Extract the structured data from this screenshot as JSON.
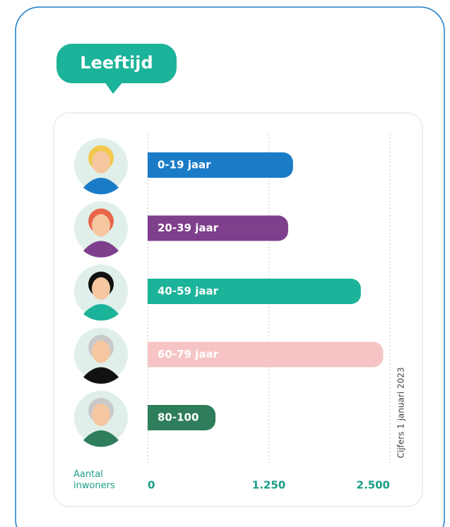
{
  "chart_data": {
    "type": "bar",
    "orientation": "horizontal",
    "title": "Leeftijd",
    "categories": [
      "0-19 jaar",
      "20-39 jaar",
      "40-59 jaar",
      "60-79 jaar",
      "80-100"
    ],
    "values": [
      1500,
      1450,
      2200,
      2430,
      700
    ],
    "colors": [
      "#1a7cc7",
      "#7e3f8c",
      "#1bb39a",
      "#f6c4c4",
      "#2e7d5b"
    ],
    "xlim": [
      0,
      2500
    ],
    "xticks": [
      0,
      {
        "value": 1250,
        "label": "1.250"
      },
      {
        "value": 2500,
        "label": "2.500"
      }
    ],
    "x_label": "Aantal inwoners",
    "note": "Cijfers 1 januari 2023",
    "grid": true
  }
}
